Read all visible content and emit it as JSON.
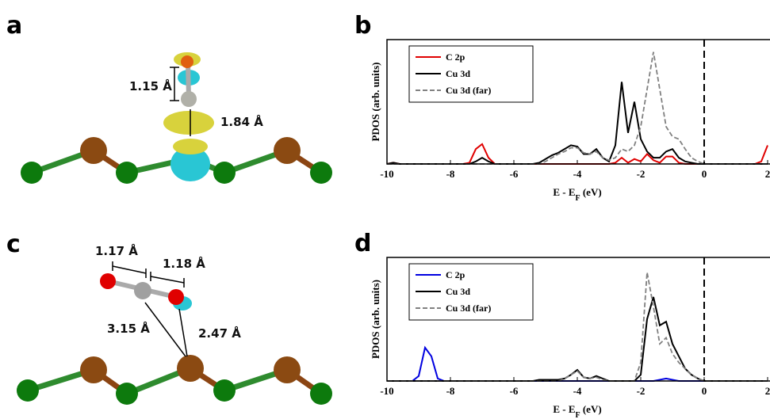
{
  "panels": {
    "a": {
      "label": "a",
      "distances": [
        "1.15 Å",
        "1.84 Å"
      ]
    },
    "c": {
      "label": "c",
      "distances": [
        "1.17 Å",
        "1.18 Å",
        "3.15 Å",
        "2.47 Å"
      ]
    }
  },
  "chart_data": [
    {
      "type": "line",
      "panel_label": "b",
      "xlabel": "E - E",
      "xlabel_sub": "F",
      "xlabel_tail": " (eV)",
      "ylabel": "PDOS (arb. units)",
      "xlim": [
        -10,
        2
      ],
      "ylim": [
        0,
        1
      ],
      "xticks": [
        -10,
        -8,
        -6,
        -4,
        -2,
        0,
        2
      ],
      "reference_line": {
        "x": 0,
        "style": "dashed"
      },
      "legend": "upper left",
      "x": [
        -10,
        -9.8,
        -9.6,
        -9.4,
        -9.2,
        -9,
        -8.8,
        -8.6,
        -8.4,
        -8.2,
        -8,
        -7.8,
        -7.6,
        -7.4,
        -7.2,
        -7,
        -6.8,
        -6.6,
        -6.4,
        -6.2,
        -6,
        -5.8,
        -5.6,
        -5.4,
        -5.2,
        -5,
        -4.8,
        -4.6,
        -4.4,
        -4.2,
        -4,
        -3.8,
        -3.6,
        -3.4,
        -3.2,
        -3,
        -2.8,
        -2.6,
        -2.4,
        -2.2,
        -2,
        -1.8,
        -1.6,
        -1.4,
        -1.2,
        -1,
        -0.8,
        -0.6,
        -0.4,
        -0.2,
        0,
        0.2,
        0.4,
        0.6,
        0.8,
        1,
        1.2,
        1.4,
        1.6,
        1.8,
        2
      ],
      "series": [
        {
          "name": "C 2p",
          "color": "#e00000",
          "dashed": false,
          "values": [
            0,
            0.01,
            0,
            0,
            0,
            0,
            0,
            0,
            0,
            0,
            0,
            0,
            0,
            0.01,
            0.12,
            0.16,
            0.05,
            0,
            0,
            0,
            0,
            0,
            0,
            0,
            0,
            0,
            0,
            0,
            0,
            0,
            0,
            0,
            0,
            0,
            0,
            0,
            0.01,
            0.05,
            0.01,
            0.04,
            0.02,
            0.08,
            0.03,
            0.01,
            0.06,
            0.06,
            0.01,
            0,
            0,
            0,
            0,
            0,
            0,
            0,
            0,
            0,
            0,
            0,
            0,
            0.02,
            0.15
          ]
        },
        {
          "name": "Cu 3d",
          "color": "#000000",
          "dashed": false,
          "values": [
            0,
            0.01,
            0,
            0,
            0,
            0,
            0,
            0,
            0,
            0,
            0,
            0,
            0,
            0,
            0.02,
            0.05,
            0.02,
            0,
            0,
            0,
            0,
            0,
            0,
            0,
            0.01,
            0.04,
            0.07,
            0.09,
            0.12,
            0.15,
            0.14,
            0.08,
            0.08,
            0.12,
            0.05,
            0.02,
            0.15,
            0.66,
            0.25,
            0.5,
            0.2,
            0.1,
            0.05,
            0.05,
            0.1,
            0.12,
            0.05,
            0.02,
            0.01,
            0,
            0,
            0,
            0,
            0,
            0,
            0,
            0,
            0,
            0,
            0,
            0
          ]
        },
        {
          "name": "Cu 3d (far)",
          "color": "#808080",
          "dashed": true,
          "values": [
            0,
            0,
            0,
            0,
            0,
            0,
            0,
            0,
            0,
            0,
            0,
            0,
            0,
            0,
            0,
            0,
            0,
            0,
            0,
            0,
            0,
            0,
            0,
            0,
            0,
            0.02,
            0.05,
            0.08,
            0.1,
            0.13,
            0.13,
            0.09,
            0.08,
            0.1,
            0.05,
            0.03,
            0.05,
            0.12,
            0.1,
            0.15,
            0.3,
            0.6,
            0.9,
            0.6,
            0.3,
            0.22,
            0.2,
            0.12,
            0.05,
            0.02,
            0,
            0,
            0,
            0,
            0,
            0,
            0,
            0,
            0,
            0,
            0
          ]
        }
      ]
    },
    {
      "type": "line",
      "panel_label": "d",
      "xlabel": "E - E",
      "xlabel_sub": "F",
      "xlabel_tail": " (eV)",
      "ylabel": "PDOS (arb. units)",
      "xlim": [
        -10,
        2
      ],
      "ylim": [
        0,
        1
      ],
      "xticks": [
        -10,
        -8,
        -6,
        -4,
        -2,
        0,
        2
      ],
      "reference_line": {
        "x": 0,
        "style": "dashed"
      },
      "legend": "upper left",
      "x": [
        -10,
        -9.8,
        -9.6,
        -9.4,
        -9.2,
        -9,
        -8.8,
        -8.6,
        -8.4,
        -8.2,
        -8,
        -7.8,
        -7.6,
        -7.4,
        -7.2,
        -7,
        -6.8,
        -6.6,
        -6.4,
        -6.2,
        -6,
        -5.8,
        -5.6,
        -5.4,
        -5.2,
        -5,
        -4.8,
        -4.6,
        -4.4,
        -4.2,
        -4,
        -3.8,
        -3.6,
        -3.4,
        -3.2,
        -3,
        -2.8,
        -2.6,
        -2.4,
        -2.2,
        -2,
        -1.8,
        -1.6,
        -1.4,
        -1.2,
        -1,
        -0.8,
        -0.6,
        -0.4,
        -0.2,
        0,
        0.2,
        0.4,
        0.6,
        0.8,
        1,
        1.2,
        1.4,
        1.6,
        1.8,
        2
      ],
      "series": [
        {
          "name": "C 2p",
          "color": "#0000e0",
          "dashed": false,
          "values": [
            0,
            0,
            0,
            0,
            0,
            0.04,
            0.27,
            0.2,
            0.02,
            0,
            0,
            0,
            0,
            0,
            0,
            0,
            0,
            0,
            0,
            0,
            0,
            0,
            0,
            0,
            0,
            0,
            0,
            0,
            0,
            0,
            0,
            0,
            0,
            0,
            0,
            0,
            0,
            0,
            0,
            0,
            0,
            0,
            0,
            0.01,
            0.02,
            0.01,
            0,
            0,
            0,
            0,
            0,
            0,
            0,
            0,
            0,
            0,
            0,
            0,
            0,
            0,
            0
          ]
        },
        {
          "name": "Cu 3d",
          "color": "#000000",
          "dashed": false,
          "values": [
            0,
            0,
            0,
            0,
            0,
            0,
            0,
            0,
            0,
            0,
            0,
            0,
            0,
            0,
            0,
            0,
            0,
            0,
            0,
            0,
            0,
            0,
            0,
            0,
            0.01,
            0.01,
            0.01,
            0.01,
            0.02,
            0.05,
            0.09,
            0.03,
            0.02,
            0.04,
            0.02,
            0,
            0,
            0,
            0,
            0,
            0.05,
            0.5,
            0.68,
            0.45,
            0.48,
            0.3,
            0.2,
            0.1,
            0.05,
            0.02,
            0,
            0,
            0,
            0,
            0,
            0,
            0,
            0,
            0,
            0,
            0
          ]
        },
        {
          "name": "Cu 3d (far)",
          "color": "#808080",
          "dashed": true,
          "values": [
            0,
            0,
            0,
            0,
            0,
            0,
            0,
            0,
            0,
            0,
            0,
            0,
            0,
            0,
            0,
            0,
            0,
            0,
            0,
            0,
            0,
            0,
            0,
            0,
            0,
            0,
            0,
            0,
            0.02,
            0.05,
            0.08,
            0.03,
            0.02,
            0.03,
            0.01,
            0,
            0,
            0,
            0,
            0,
            0.15,
            0.88,
            0.6,
            0.3,
            0.35,
            0.22,
            0.15,
            0.1,
            0.05,
            0.02,
            0,
            0,
            0,
            0,
            0,
            0,
            0,
            0,
            0,
            0,
            0
          ]
        }
      ]
    }
  ]
}
